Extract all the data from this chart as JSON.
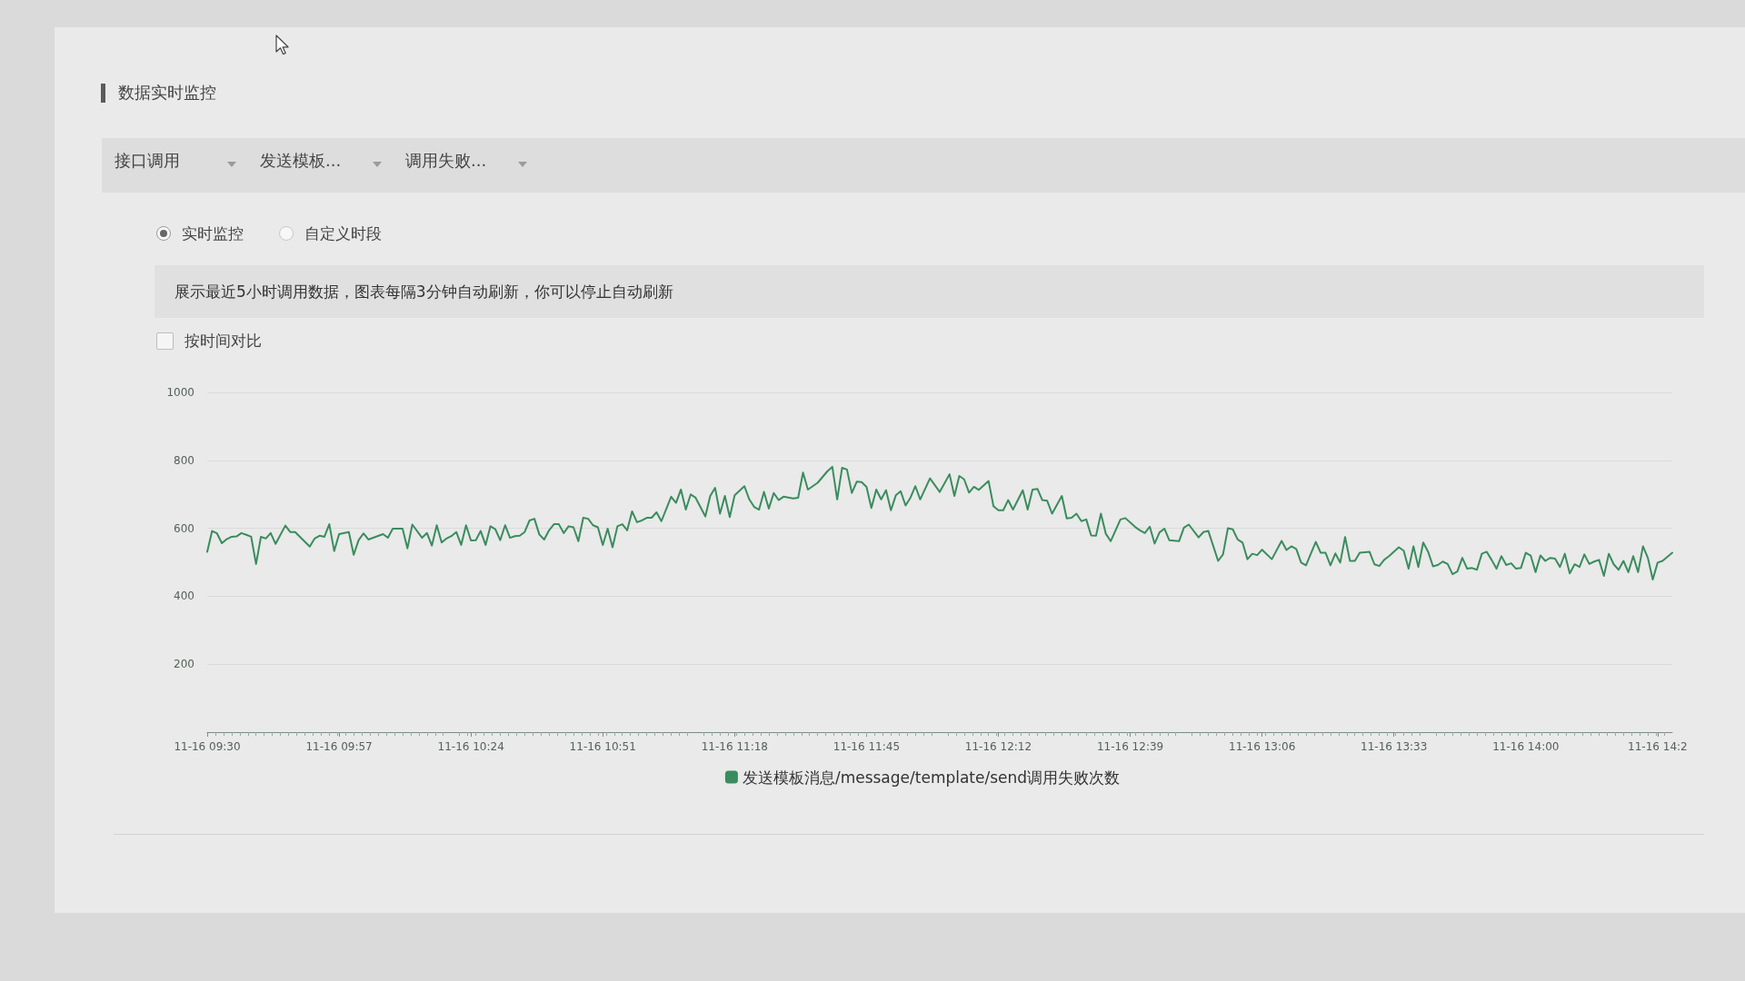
{
  "chart_data": {
    "type": "line",
    "title": "数据实时监控",
    "annotations": [
      "接口调用",
      "发送模板...",
      "调用失败...",
      "实时监控",
      "自定义时段",
      "展示最近5小时调用数据，图表每隔3分钟自动刷新，你可以停止自动刷新",
      "按时间对比"
    ],
    "x": [
      "--11-16T09:30",
      "--11-16T09:31",
      "--11-16T09:32",
      "--11-16T09:33",
      "--11-16T09:34",
      "--11-16T09:35",
      "--11-16T09:36",
      "--11-16T09:37",
      "--11-16T09:38",
      "--11-16T09:39",
      "--11-16T09:40",
      "--11-16T09:41",
      "--11-16T09:42",
      "--11-16T09:43",
      "--11-16T09:44",
      "--11-16T09:46",
      "--11-16T09:47",
      "--11-16T09:48",
      "--11-16T09:51",
      "--11-16T09:52",
      "--11-16T09:53",
      "--11-16T09:54",
      "--11-16T09:55",
      "--11-16T09:56",
      "--11-16T09:57",
      "--11-16T09:59",
      "--11-16T10:00",
      "--11-16T10:01",
      "--11-16T10:02",
      "--11-16T10:03",
      "--11-16T10:06",
      "--11-16T10:07",
      "--11-16T10:08",
      "--11-16T10:10",
      "--11-16T10:11",
      "--11-16T10:12",
      "--11-16T10:14",
      "--11-16T10:15",
      "--11-16T10:16",
      "--11-16T10:17",
      "--11-16T10:18",
      "--11-16T10:19",
      "--11-16T10:20",
      "--11-16T10:21",
      "--11-16T10:22",
      "--11-16T10:23",
      "--11-16T10:24",
      "--11-16T10:25",
      "--11-16T10:26",
      "--11-16T10:27",
      "--11-16T10:28",
      "--11-16T10:29",
      "--11-16T10:30",
      "--11-16T10:31",
      "--11-16T10:32",
      "--11-16T10:33",
      "--11-16T10:34",
      "--11-16T10:35",
      "--11-16T10:36",
      "--11-16T10:37",
      "--11-16T10:38",
      "--11-16T10:39",
      "--11-16T10:40",
      "--11-16T10:41",
      "--11-16T10:42",
      "--11-16T10:43",
      "--11-16T10:44",
      "--11-16T10:45",
      "--11-16T10:46",
      "--11-16T10:47",
      "--11-16T10:48",
      "--11-16T10:49",
      "--11-16T10:50",
      "--11-16T10:51",
      "--11-16T10:52",
      "--11-16T10:53",
      "--11-16T10:54",
      "--11-16T10:55",
      "--11-16T10:56",
      "--11-16T10:57",
      "--11-16T10:58",
      "--11-16T10:59",
      "--11-16T11:00",
      "--11-16T11:01",
      "--11-16T11:02",
      "--11-16T11:03",
      "--11-16T11:05",
      "--11-16T11:06",
      "--11-16T11:07",
      "--11-16T11:08",
      "--11-16T11:09",
      "--11-16T11:10",
      "--11-16T11:12",
      "--11-16T11:13",
      "--11-16T11:14",
      "--11-16T11:15",
      "--11-16T11:16",
      "--11-16T11:17",
      "--11-16T11:18",
      "--11-16T11:20",
      "--11-16T11:21",
      "--11-16T11:22",
      "--11-16T11:23",
      "--11-16T11:24",
      "--11-16T11:25",
      "--11-16T11:26",
      "--11-16T11:27",
      "--11-16T11:28",
      "--11-16T11:30",
      "--11-16T11:31",
      "--11-16T11:32",
      "--11-16T11:33",
      "--11-16T11:35",
      "--11-16T11:37",
      "--11-16T11:38",
      "--11-16T11:39",
      "--11-16T11:40",
      "--11-16T11:41",
      "--11-16T11:42",
      "--11-16T11:43",
      "--11-16T11:44",
      "--11-16T11:45",
      "--11-16T11:46",
      "--11-16T11:47",
      "--11-16T11:48",
      "--11-16T11:49",
      "--11-16T11:50",
      "--11-16T11:51",
      "--11-16T11:52",
      "--11-16T11:53",
      "--11-16T11:54",
      "--11-16T11:55",
      "--11-16T11:56",
      "--11-16T11:58",
      "--11-16T12:00",
      "--11-16T12:02",
      "--11-16T12:03",
      "--11-16T12:04",
      "--11-16T12:05",
      "--11-16T12:06",
      "--11-16T12:07",
      "--11-16T12:08",
      "--11-16T12:10",
      "--11-16T12:11",
      "--11-16T12:12",
      "--11-16T12:13",
      "--11-16T12:14",
      "--11-16T12:15",
      "--11-16T12:17",
      "--11-16T12:18",
      "--11-16T12:19",
      "--11-16T12:20",
      "--11-16T12:21",
      "--11-16T12:22",
      "--11-16T12:23",
      "--11-16T12:25",
      "--11-16T12:26",
      "--11-16T12:27",
      "--11-16T12:28",
      "--11-16T12:29",
      "--11-16T12:30",
      "--11-16T12:31",
      "--11-16T12:32",
      "--11-16T12:33",
      "--11-16T12:34",
      "--11-16T12:35",
      "--11-16T12:37",
      "--11-16T12:38",
      "--11-16T12:40",
      "--11-16T12:41",
      "--11-16T12:42",
      "--11-16T12:43",
      "--11-16T12:44",
      "--11-16T12:45",
      "--11-16T12:46",
      "--11-16T12:47",
      "--11-16T12:49",
      "--11-16T12:50",
      "--11-16T12:51",
      "--11-16T12:53",
      "--11-16T12:54",
      "--11-16T12:55",
      "--11-16T12:57",
      "--11-16T12:58",
      "--11-16T12:59",
      "--11-16T13:00",
      "--11-16T13:01",
      "--11-16T13:02",
      "--11-16T13:03",
      "--11-16T13:04",
      "--11-16T13:05",
      "--11-16T13:06",
      "--11-16T13:08",
      "--11-16T13:10",
      "--11-16T13:11",
      "--11-16T13:12",
      "--11-16T13:13",
      "--11-16T13:14",
      "--11-16T13:15",
      "--11-16T13:16",
      "--11-16T13:17",
      "--11-16T13:18",
      "--11-16T13:19",
      "--11-16T13:20",
      "--11-16T13:21",
      "--11-16T13:22",
      "--11-16T13:23",
      "--11-16T13:24",
      "--11-16T13:25",
      "--11-16T13:26",
      "--11-16T13:28",
      "--11-16T13:29",
      "--11-16T13:30",
      "--11-16T13:31",
      "--11-16T13:32",
      "--11-16T13:34",
      "--11-16T13:35",
      "--11-16T13:36",
      "--11-16T13:37",
      "--11-16T13:38",
      "--11-16T13:39",
      "--11-16T13:40",
      "--11-16T13:41",
      "--11-16T13:42",
      "--11-16T13:43",
      "--11-16T13:44",
      "--11-16T13:45",
      "--11-16T13:46",
      "--11-16T13:47",
      "--11-16T13:48",
      "--11-16T13:49",
      "--11-16T13:50",
      "--11-16T13:51",
      "--11-16T13:52",
      "--11-16T13:53",
      "--11-16T13:54",
      "--11-16T13:55",
      "--11-16T13:56",
      "--11-16T13:57",
      "--11-16T13:58",
      "--11-16T13:59",
      "--11-16T14:00",
      "--11-16T14:01",
      "--11-16T14:02",
      "--11-16T14:03",
      "--11-16T14:04",
      "--11-16T14:05",
      "--11-16T14:06",
      "--11-16T14:07",
      "--11-16T14:08",
      "--11-16T14:09",
      "--11-16T14:10",
      "--11-16T14:11",
      "--11-16T14:12",
      "--11-16T14:13",
      "--11-16T14:14",
      "--11-16T14:15",
      "--11-16T14:16",
      "--11-16T14:17",
      "--11-16T14:18",
      "--11-16T14:19",
      "--11-16T14:20",
      "--11-16T14:21",
      "--11-16T14:22",
      "--11-16T14:23",
      "--11-16T14:24",
      "--11-16T14:25",
      "--11-16T14:26",
      "--11-16T14:27",
      "--11-16T14:28",
      "--11-16T14:30"
    ],
    "series": [
      {
        "name": "发送模板消息/message/template/send调用失败次数",
        "color": "#3a8c5e",
        "values": [
          531,
          592,
          585,
          556,
          568,
          575,
          576,
          586,
          581,
          575,
          495,
          575,
          570,
          586,
          554,
          608,
          589,
          589,
          546,
          570,
          578,
          575,
          612,
          533,
          583,
          589,
          522,
          565,
          585,
          567,
          583,
          572,
          599,
          599,
          541,
          611,
          572,
          586,
          549,
          609,
          558,
          570,
          577,
          589,
          551,
          609,
          564,
          565,
          592,
          551,
          606,
          597,
          565,
          609,
          572,
          577,
          578,
          589,
          623,
          628,
          582,
          567,
          594,
          612,
          612,
          586,
          606,
          603,
          562,
          631,
          628,
          609,
          603,
          551,
          599,
          544,
          606,
          612,
          594,
          650,
          618,
          623,
          631,
          631,
          647,
          621,
          693,
          675,
          714,
          655,
          700,
          690,
          635,
          695,
          719,
          643,
          695,
          633,
          697,
          724,
          685,
          663,
          655,
          707,
          658,
          704,
          683,
          693,
          688,
          690,
          764,
          714,
          734,
          768,
          781,
          685,
          778,
          773,
          704,
          737,
          736,
          722,
          660,
          714,
          685,
          712,
          653,
          697,
          709,
          667,
          690,
          724,
          685,
          747,
          707,
          759,
          695,
          754,
          744,
          705,
          722,
          713,
          739,
          665,
          653,
          653,
          683,
          655,
          712,
          655,
          714,
          716,
          683,
          681,
          643,
          695,
          629,
          631,
          643,
          621,
          626,
          579,
          578,
          643,
          584,
          562,
          626,
          630,
          604,
          594,
          586,
          605,
          555,
          588,
          599,
          565,
          562,
          602,
          611,
          573,
          589,
          592,
          504,
          523,
          600,
          597,
          567,
          558,
          509,
          525,
          521,
          537,
          509,
          563,
          536,
          547,
          539,
          499,
          491,
          526,
          560,
          528,
          528,
          491,
          526,
          499,
          574,
          504,
          504,
          528,
          531,
          494,
          489,
          507,
          518,
          544,
          534,
          481,
          547,
          486,
          558,
          531,
          488,
          492,
          502,
          495,
          465,
          473,
          513,
          481,
          483,
          478,
          525,
          531,
          507,
          481,
          518,
          492,
          497,
          481,
          483,
          528,
          520,
          471,
          520,
          504,
          513,
          511,
          486,
          525,
          467,
          494,
          486,
          523,
          495,
          502,
          507,
          460,
          525,
          494,
          478,
          504,
          471,
          518,
          471,
          547,
          513,
          449,
          499,
          504,
          528
        ]
      }
    ],
    "xlim": [
      "--11-16T09:30",
      "--11-16T14:30"
    ],
    "xticks": [
      {
        "value": "--11-16T09:30",
        "label": "11-16 09:30"
      },
      {
        "value": "--11-16T09:57",
        "label": "11-16 09:57"
      },
      {
        "value": "--11-16T10:24",
        "label": "11-16 10:24"
      },
      {
        "value": "--11-16T10:51",
        "label": "11-16 10:51"
      },
      {
        "value": "--11-16T11:18",
        "label": "11-16 11:18"
      },
      {
        "value": "--11-16T11:45",
        "label": "11-16 11:45"
      },
      {
        "value": "--11-16T12:12",
        "label": "11-16 12:12"
      },
      {
        "value": "--11-16T12:39",
        "label": "11-16 12:39"
      },
      {
        "value": "--11-16T13:06",
        "label": "11-16 13:06"
      },
      {
        "value": "--11-16T13:33",
        "label": "11-16 13:33"
      },
      {
        "value": "--11-16T14:00",
        "label": "11-16 14:00"
      },
      {
        "value": "--11-16T14:27",
        "label": "11-16 14:2"
      }
    ],
    "ylim": [
      0,
      1000
    ],
    "yticks": [
      {
        "value": 0,
        "label": null
      },
      200,
      400,
      600,
      800,
      1000
    ],
    "grid": "y",
    "legend": "bottom",
    "marker": "none",
    "line_style": "solid"
  }
}
